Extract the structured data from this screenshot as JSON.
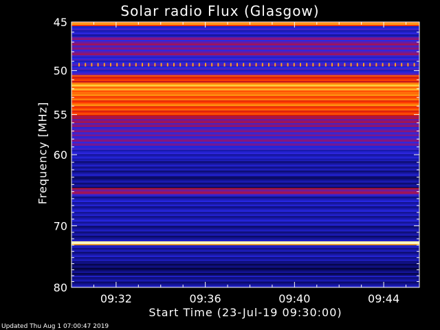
{
  "chart_data": {
    "type": "heatmap",
    "title": "Solar radio Flux (Glasgow)",
    "xlabel": "Start Time (23-Jul-19 09:30:00)",
    "ylabel": "Frequency [MHz]",
    "x_range_minutes": [
      0,
      15.6
    ],
    "y_range_mhz": [
      45,
      80
    ],
    "x_ticks": [
      "09:32",
      "09:36",
      "09:40",
      "09:44"
    ],
    "x_tick_minutes": [
      2,
      6,
      10,
      14
    ],
    "y_ticks": [
      45,
      50,
      55,
      60,
      70,
      80
    ],
    "y_scale": "log",
    "colormap": "black-blue-red-yellow-white",
    "bands": [
      {
        "from": 45.0,
        "to": 45.4,
        "level": 0.8
      },
      {
        "from": 45.4,
        "to": 46.5,
        "level": 0.3
      },
      {
        "from": 46.5,
        "to": 48.5,
        "level": 0.45
      },
      {
        "from": 48.5,
        "to": 50.5,
        "level": 0.35
      },
      {
        "from": 50.5,
        "to": 51.3,
        "level": 0.7
      },
      {
        "from": 51.3,
        "to": 52.5,
        "level": 0.85
      },
      {
        "from": 52.5,
        "to": 54.0,
        "level": 0.78
      },
      {
        "from": 54.0,
        "to": 55.2,
        "level": 0.72
      },
      {
        "from": 55.2,
        "to": 56.5,
        "level": 0.5
      },
      {
        "from": 56.5,
        "to": 59.0,
        "level": 0.42
      },
      {
        "from": 59.0,
        "to": 60.5,
        "level": 0.3
      },
      {
        "from": 60.5,
        "to": 63.0,
        "level": 0.22
      },
      {
        "from": 63.0,
        "to": 64.5,
        "level": 0.18
      },
      {
        "from": 64.5,
        "to": 65.5,
        "level": 0.5
      },
      {
        "from": 65.5,
        "to": 70.0,
        "level": 0.25
      },
      {
        "from": 70.0,
        "to": 72.4,
        "level": 0.2
      },
      {
        "from": 72.4,
        "to": 73.0,
        "level": 0.98
      },
      {
        "from": 73.0,
        "to": 76.0,
        "level": 0.22
      },
      {
        "from": 76.0,
        "to": 78.0,
        "level": 0.12
      },
      {
        "from": 78.0,
        "to": 80.0,
        "level": 0.2
      }
    ],
    "tick_marks_freq_mhz": 49.4
  },
  "footer": "Updated Thu Aug  1 07:00:47 2019",
  "colors": {
    "background": "#000000",
    "axis": "#ffffff"
  }
}
